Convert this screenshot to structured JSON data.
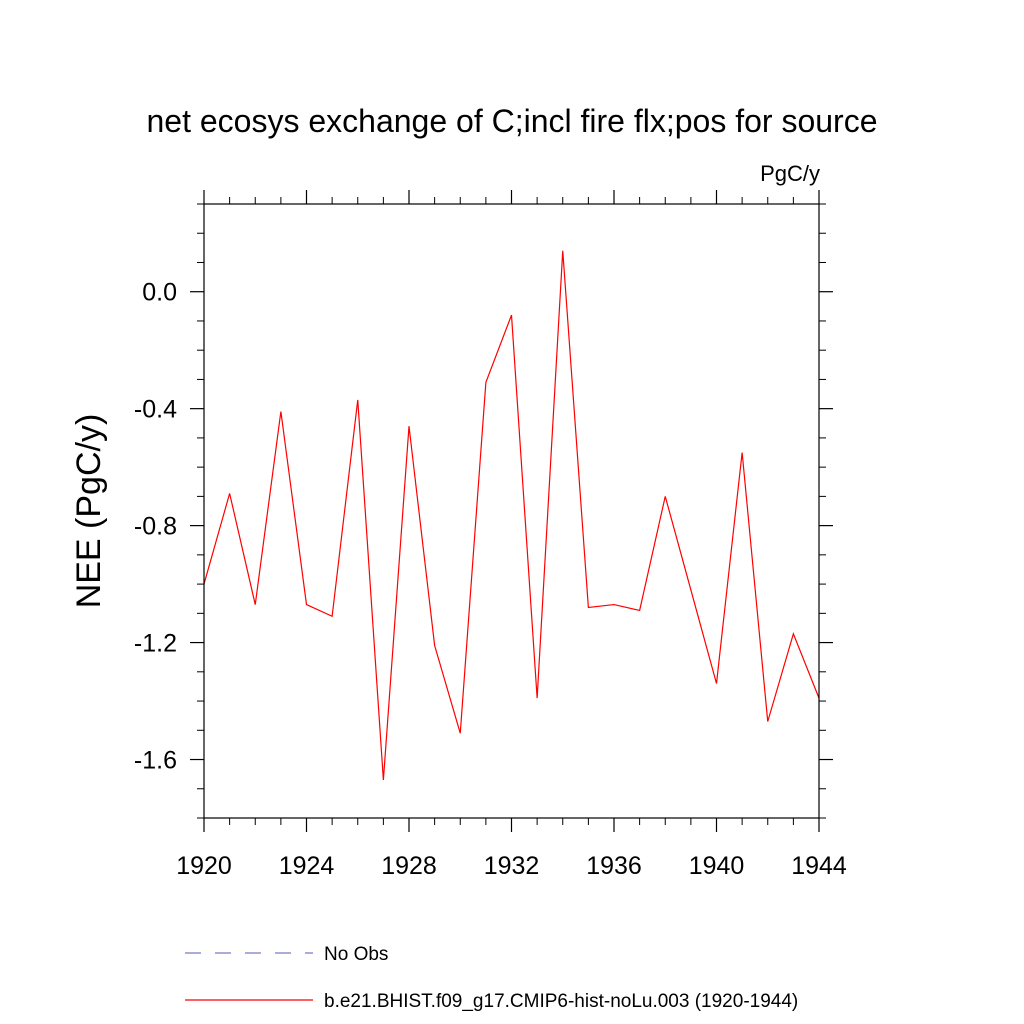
{
  "chart_data": {
    "type": "line",
    "title": "net ecosys exchange of C;incl fire flx;pos for source",
    "units_label": "PgC/y",
    "xlabel": "",
    "ylabel": "NEE  (PgC/y)",
    "xlim": [
      1920,
      1944
    ],
    "ylim": [
      -1.8,
      0.3
    ],
    "x_ticks": [
      1920,
      1924,
      1928,
      1932,
      1936,
      1940,
      1944
    ],
    "x_tick_labels": [
      "1920",
      "1924",
      "1928",
      "1932",
      "1936",
      "1940",
      "1944"
    ],
    "y_ticks": [
      0.0,
      -0.4,
      -0.8,
      -1.2,
      -1.6
    ],
    "y_tick_labels": [
      "0.0",
      "-0.4",
      "-0.8",
      "-1.2",
      "-1.6"
    ],
    "x_minor_step": 1,
    "y_minor_step": 0.1,
    "grid": false,
    "series": [
      {
        "name": "b.e21.BHIST.f09_g17.CMIP6-hist-noLu.003 (1920-1944)",
        "color": "#ff0000",
        "style": "solid",
        "x": [
          1920,
          1921,
          1922,
          1923,
          1924,
          1925,
          1926,
          1927,
          1928,
          1929,
          1930,
          1931,
          1932,
          1933,
          1934,
          1935,
          1936,
          1937,
          1938,
          1939,
          1940,
          1941,
          1942,
          1943,
          1944
        ],
        "values": [
          -1.0,
          -0.69,
          -1.07,
          -0.41,
          -1.07,
          -1.11,
          -0.37,
          -1.67,
          -0.46,
          -1.21,
          -1.51,
          -0.31,
          -0.08,
          -1.39,
          0.14,
          -1.08,
          -1.07,
          -1.09,
          -0.7,
          -1.02,
          -1.34,
          -0.55,
          -1.47,
          -1.17,
          -1.39
        ]
      }
    ],
    "legend": {
      "placement": "bottom",
      "entries": [
        {
          "label": "No Obs",
          "color": "#7b7bc4",
          "style": "dashed"
        },
        {
          "label": "b.e21.BHIST.f09_g17.CMIP6-hist-noLu.003 (1920-1944)",
          "color": "#ff0000",
          "style": "solid"
        }
      ]
    }
  }
}
